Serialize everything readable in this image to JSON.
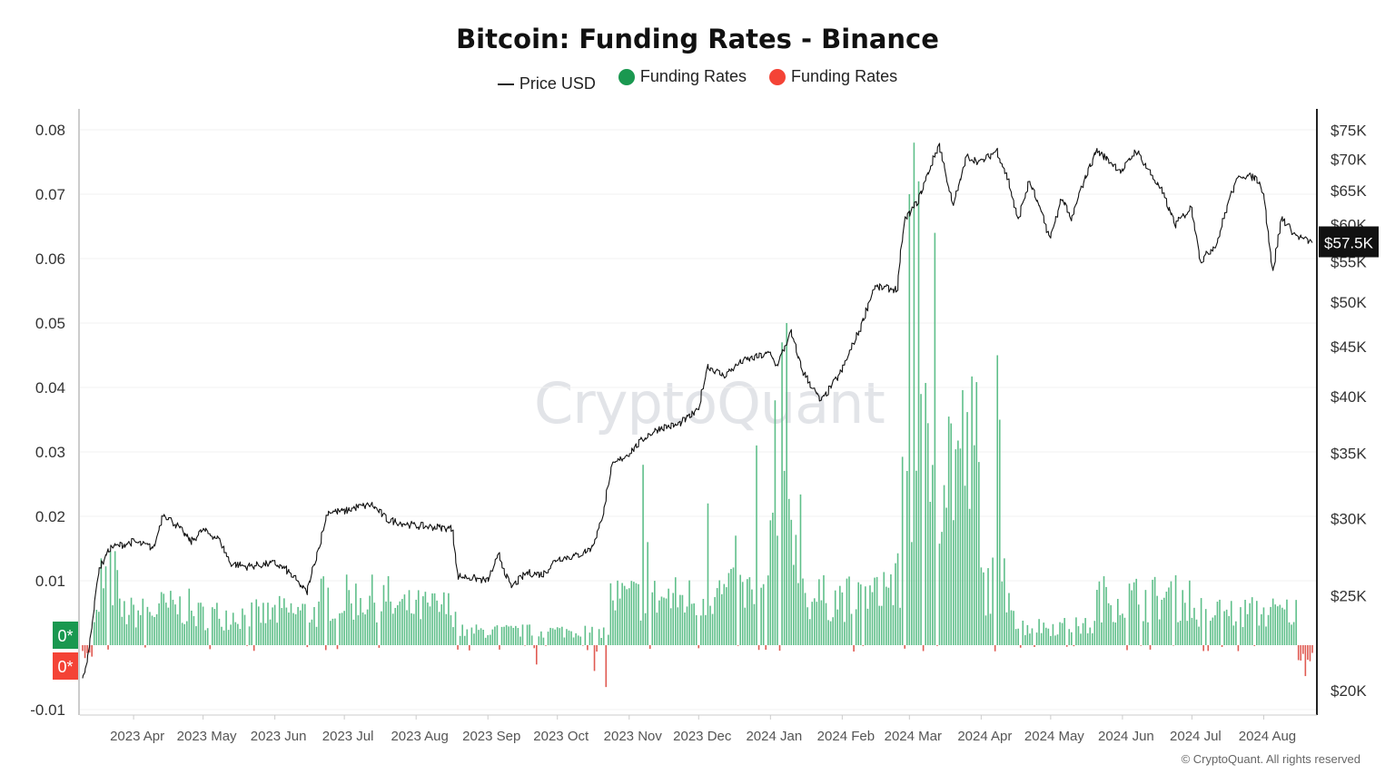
{
  "title": "Bitcoin: Funding Rates - Binance",
  "legend": [
    {
      "label": "Price USD",
      "kind": "line",
      "color": "#222222"
    },
    {
      "label": "Funding Rates",
      "kind": "dot",
      "color": "#1a9850"
    },
    {
      "label": "Funding Rates",
      "kind": "dot",
      "color": "#f44336"
    }
  ],
  "watermark": "CryptoQuant",
  "copyright": "© CryptoQuant. All rights reserved",
  "badges": {
    "positive": "0*",
    "negative": "0*",
    "price": "$57.5K"
  },
  "colors": {
    "positive": "#5fbf8a",
    "negative": "#e05a52",
    "price": "#111111",
    "grid": "#f0f0f0"
  },
  "chart_data": {
    "type": "bar",
    "x_range": [
      "2023-03-10",
      "2024-08-22"
    ],
    "y_left": {
      "min": -0.01,
      "max": 0.08,
      "ticks": [
        "0.08",
        "0.07",
        "0.06",
        "0.05",
        "0.04",
        "0.03",
        "0.02",
        "0.01",
        "-0.01"
      ]
    },
    "y_right": {
      "scale": "log",
      "min": 19000,
      "max": 78000,
      "ticks": [
        "$75K",
        "$70K",
        "$65K",
        "$60K",
        "$55K",
        "$50K",
        "$45K",
        "$40K",
        "$35K",
        "$30K",
        "$25K",
        "$20K"
      ],
      "tick_values": [
        75000,
        70000,
        65000,
        60000,
        55000,
        50000,
        45000,
        40000,
        35000,
        30000,
        25000,
        20000
      ]
    },
    "x_ticks": [
      {
        "date": "2023-04-01",
        "label": "2023 Apr"
      },
      {
        "date": "2023-05-01",
        "label": "2023 May"
      },
      {
        "date": "2023-06-01",
        "label": "2023 Jun"
      },
      {
        "date": "2023-07-01",
        "label": "2023 Jul"
      },
      {
        "date": "2023-08-01",
        "label": "2023 Aug"
      },
      {
        "date": "2023-09-01",
        "label": "2023 Sep"
      },
      {
        "date": "2023-10-01",
        "label": "2023 Oct"
      },
      {
        "date": "2023-11-01",
        "label": "2023 Nov"
      },
      {
        "date": "2023-12-01",
        "label": "2023 Dec"
      },
      {
        "date": "2024-01-01",
        "label": "2024 Jan"
      },
      {
        "date": "2024-02-01",
        "label": "2024 Feb"
      },
      {
        "date": "2024-03-01",
        "label": "2024 Mar"
      },
      {
        "date": "2024-04-01",
        "label": "2024 Apr"
      },
      {
        "date": "2024-05-01",
        "label": "2024 May"
      },
      {
        "date": "2024-06-01",
        "label": "2024 Jun"
      },
      {
        "date": "2024-07-01",
        "label": "2024 Jul"
      },
      {
        "date": "2024-08-01",
        "label": "2024 Aug"
      }
    ],
    "price_series": [
      [
        "2023-03-10",
        20500
      ],
      [
        "2023-03-13",
        22000
      ],
      [
        "2023-03-17",
        26500
      ],
      [
        "2023-03-22",
        28000
      ],
      [
        "2023-04-01",
        28400
      ],
      [
        "2023-04-10",
        28000
      ],
      [
        "2023-04-14",
        30400
      ],
      [
        "2023-04-20",
        29500
      ],
      [
        "2023-04-26",
        28400
      ],
      [
        "2023-05-01",
        29200
      ],
      [
        "2023-05-08",
        28600
      ],
      [
        "2023-05-13",
        27000
      ],
      [
        "2023-05-20",
        26800
      ],
      [
        "2023-06-01",
        27000
      ],
      [
        "2023-06-06",
        26600
      ],
      [
        "2023-06-10",
        26000
      ],
      [
        "2023-06-15",
        25200
      ],
      [
        "2023-06-21",
        28500
      ],
      [
        "2023-06-24",
        30500
      ],
      [
        "2023-07-01",
        30500
      ],
      [
        "2023-07-06",
        30800
      ],
      [
        "2023-07-13",
        31000
      ],
      [
        "2023-07-20",
        29900
      ],
      [
        "2023-08-01",
        29500
      ],
      [
        "2023-08-10",
        29400
      ],
      [
        "2023-08-17",
        29300
      ],
      [
        "2023-08-19",
        26200
      ],
      [
        "2023-08-25",
        26100
      ],
      [
        "2023-09-01",
        25900
      ],
      [
        "2023-09-06",
        27500
      ],
      [
        "2023-09-11",
        25500
      ],
      [
        "2023-09-18",
        26400
      ],
      [
        "2023-09-25",
        26300
      ],
      [
        "2023-10-01",
        27300
      ],
      [
        "2023-10-10",
        27500
      ],
      [
        "2023-10-16",
        28000
      ],
      [
        "2023-10-20",
        29700
      ],
      [
        "2023-10-25",
        34000
      ],
      [
        "2023-11-01",
        35000
      ],
      [
        "2023-11-09",
        36500
      ],
      [
        "2023-11-15",
        37200
      ],
      [
        "2023-11-22",
        37400
      ],
      [
        "2023-12-01",
        38700
      ],
      [
        "2023-12-05",
        43000
      ],
      [
        "2023-12-12",
        42000
      ],
      [
        "2023-12-20",
        43500
      ],
      [
        "2024-01-01",
        44300
      ],
      [
        "2024-01-04",
        43000
      ],
      [
        "2024-01-10",
        46500
      ],
      [
        "2024-01-15",
        42500
      ],
      [
        "2024-01-23",
        39500
      ],
      [
        "2024-02-01",
        42500
      ],
      [
        "2024-02-09",
        47000
      ],
      [
        "2024-02-15",
        51800
      ],
      [
        "2024-02-25",
        51500
      ],
      [
        "2024-02-28",
        60500
      ],
      [
        "2024-03-05",
        63500
      ],
      [
        "2024-03-14",
        72500
      ],
      [
        "2024-03-20",
        62500
      ],
      [
        "2024-03-26",
        70500
      ],
      [
        "2024-04-01",
        69500
      ],
      [
        "2024-04-08",
        71500
      ],
      [
        "2024-04-13",
        66500
      ],
      [
        "2024-04-17",
        60500
      ],
      [
        "2024-04-22",
        66500
      ],
      [
        "2024-05-01",
        58000
      ],
      [
        "2024-05-06",
        64000
      ],
      [
        "2024-05-10",
        60500
      ],
      [
        "2024-05-15",
        66000
      ],
      [
        "2024-05-21",
        71500
      ],
      [
        "2024-06-01",
        68000
      ],
      [
        "2024-06-07",
        71500
      ],
      [
        "2024-06-12",
        68500
      ],
      [
        "2024-06-18",
        65000
      ],
      [
        "2024-06-24",
        60000
      ],
      [
        "2024-07-01",
        62500
      ],
      [
        "2024-07-05",
        55000
      ],
      [
        "2024-07-12",
        57500
      ],
      [
        "2024-07-18",
        64500
      ],
      [
        "2024-07-22",
        67500
      ],
      [
        "2024-07-29",
        67000
      ],
      [
        "2024-08-01",
        65000
      ],
      [
        "2024-08-05",
        53500
      ],
      [
        "2024-08-09",
        61000
      ],
      [
        "2024-08-15",
        58500
      ],
      [
        "2024-08-22",
        57500
      ]
    ],
    "funding_segments": [
      [
        "2023-03-10",
        "2023-03-14",
        -0.0015
      ],
      [
        "2023-03-15",
        "2023-03-17",
        0.006
      ],
      [
        "2023-03-18",
        "2023-03-25",
        0.014
      ],
      [
        "2023-03-26",
        "2023-04-10",
        0.007
      ],
      [
        "2023-04-11",
        "2023-04-25",
        0.008
      ],
      [
        "2023-04-26",
        "2023-05-31",
        0.0065
      ],
      [
        "2023-06-01",
        "2023-06-20",
        0.007
      ],
      [
        "2023-06-21",
        "2023-07-20",
        0.01
      ],
      [
        "2023-07-21",
        "2023-08-18",
        0.008
      ],
      [
        "2023-08-19",
        "2023-09-15",
        0.003
      ],
      [
        "2023-09-16",
        "2023-10-23",
        0.003
      ],
      [
        "2023-10-24",
        "2023-11-30",
        0.01
      ],
      [
        "2023-12-01",
        "2023-12-31",
        0.011
      ],
      [
        "2024-01-01",
        "2024-01-15",
        0.025
      ],
      [
        "2024-01-16",
        "2024-02-15",
        0.01
      ],
      [
        "2024-02-16",
        "2024-02-26",
        0.013
      ],
      [
        "2024-02-27",
        "2024-03-31",
        0.04
      ],
      [
        "2024-04-01",
        "2024-04-15",
        0.013
      ],
      [
        "2024-04-16",
        "2024-05-20",
        0.004
      ],
      [
        "2024-05-21",
        "2024-06-30",
        0.01
      ],
      [
        "2024-07-01",
        "2024-08-15",
        0.007
      ],
      [
        "2024-08-16",
        "2024-08-22",
        -0.002
      ]
    ],
    "funding_spikes": [
      [
        "2023-09-22",
        -0.003
      ],
      [
        "2023-10-17",
        -0.004
      ],
      [
        "2023-10-22",
        -0.0065
      ],
      [
        "2023-11-07",
        0.028
      ],
      [
        "2023-11-09",
        0.016
      ],
      [
        "2023-12-05",
        0.022
      ],
      [
        "2023-12-17",
        0.017
      ],
      [
        "2023-12-26",
        0.031
      ],
      [
        "2024-01-03",
        0.038
      ],
      [
        "2024-01-06",
        0.047
      ],
      [
        "2024-01-08",
        0.05
      ],
      [
        "2024-03-01",
        0.07
      ],
      [
        "2024-03-03",
        0.078
      ],
      [
        "2024-03-05",
        0.072
      ],
      [
        "2024-03-12",
        0.064
      ],
      [
        "2024-04-08",
        0.045
      ],
      [
        "2024-04-09",
        0.035
      ],
      [
        "2024-08-19",
        -0.0048
      ]
    ]
  }
}
